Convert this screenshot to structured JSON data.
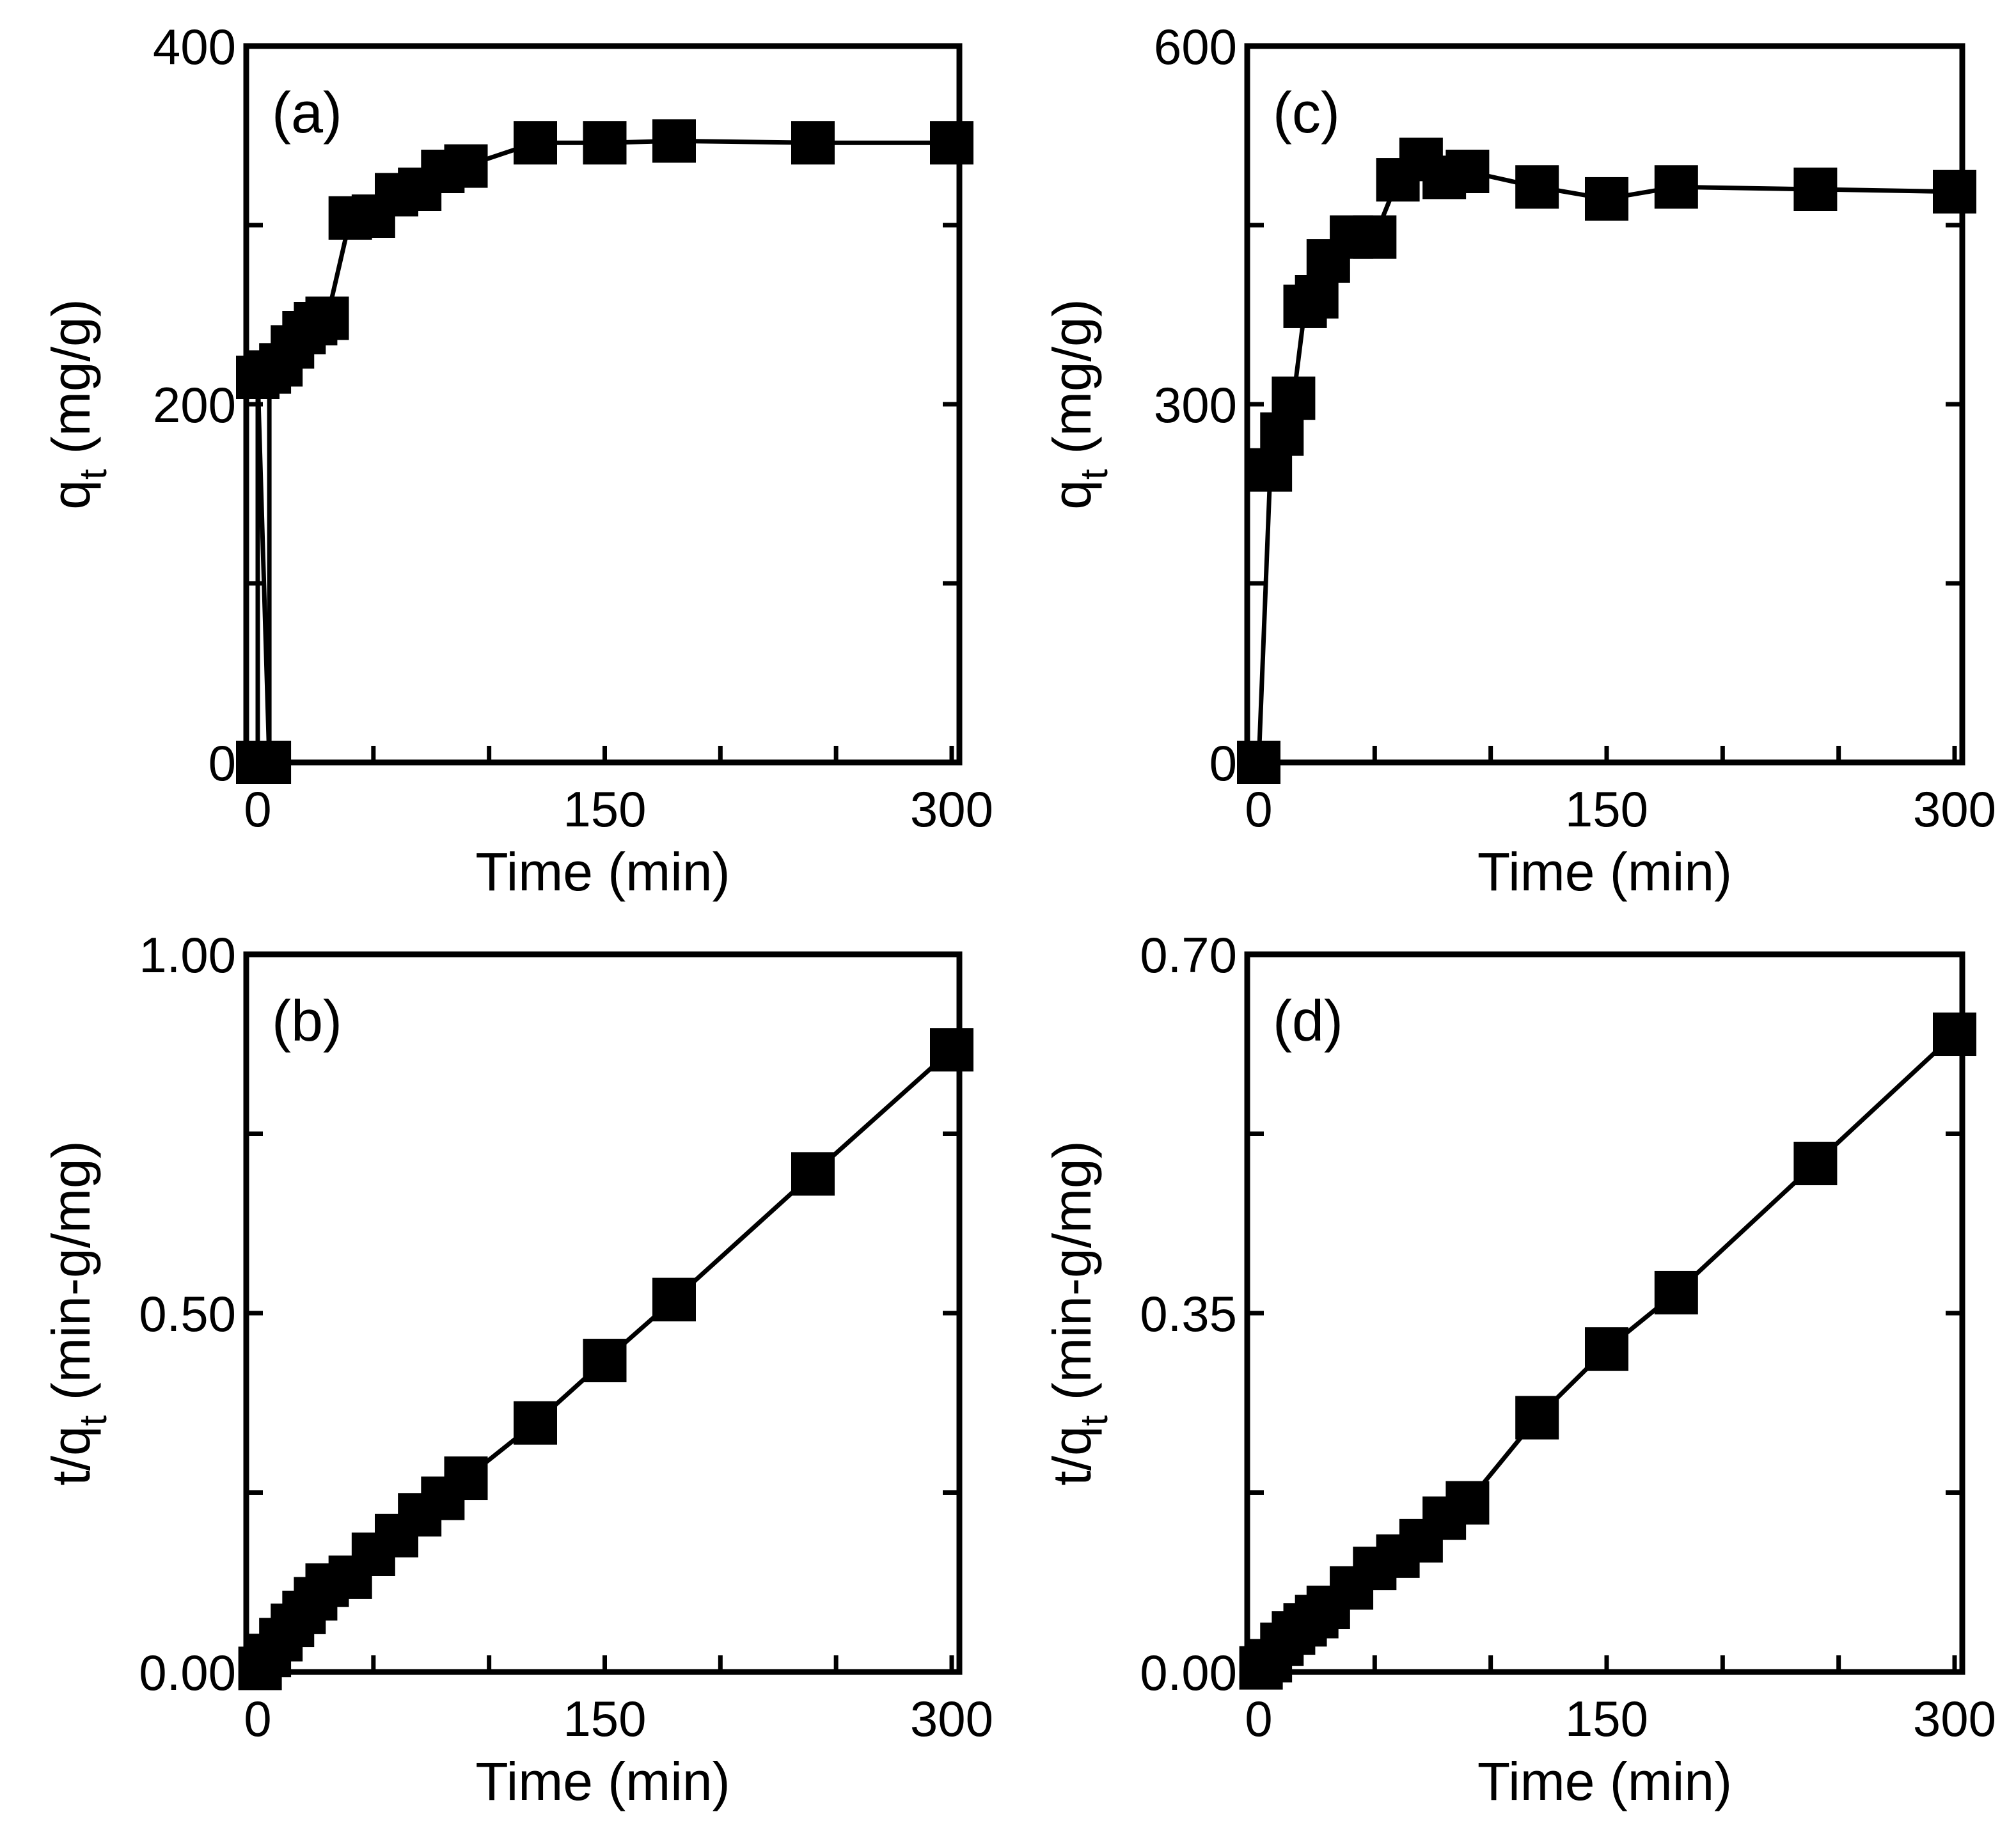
{
  "chart_data": [
    {
      "type": "line",
      "panel_label": "(a)",
      "xlabel": "Time (min)",
      "ylabel_main": "q",
      "ylabel_sub": "t",
      "ylabel_tail": " (mg/g)",
      "xlim": [
        0,
        300
      ],
      "ylim": [
        0,
        400
      ],
      "xticks": [
        0,
        150,
        300
      ],
      "xtick_labels": [
        "0",
        "150",
        "300"
      ],
      "yticks": [
        0,
        200,
        400
      ],
      "ytick_labels": [
        "0",
        "200",
        "400"
      ],
      "y_minor_ticks": [
        100,
        300
      ],
      "series": [
        {
          "name": "qt",
          "x": [
            0,
            0,
            5,
            5,
            10,
            15,
            20,
            25,
            30,
            40,
            50,
            60,
            70,
            80,
            90,
            120,
            150,
            180,
            240,
            300
          ],
          "y": [
            0,
            215,
            0,
            218,
            222,
            232,
            240,
            245,
            248,
            304,
            305,
            317,
            320,
            330,
            333,
            346,
            346,
            347,
            346,
            346
          ]
        }
      ]
    },
    {
      "type": "line",
      "panel_label": "(b)",
      "xlabel": "Time (min)",
      "ylabel_main": "t/q",
      "ylabel_sub": "t",
      "ylabel_tail": " (min-g/mg)",
      "xlim": [
        0,
        300
      ],
      "ylim": [
        0,
        1.0
      ],
      "xticks": [
        0,
        150,
        300
      ],
      "xtick_labels": [
        "0",
        "150",
        "300"
      ],
      "yticks": [
        0,
        0.5,
        1.0
      ],
      "ytick_labels": [
        "0.00",
        "0.50",
        "1.00"
      ],
      "y_minor_ticks": [
        0.25,
        0.75
      ],
      "series": [
        {
          "name": "t/qt",
          "x": [
            1,
            5,
            10,
            15,
            20,
            25,
            30,
            40,
            50,
            60,
            70,
            80,
            90,
            120,
            150,
            180,
            240,
            300
          ],
          "y": [
            0.005,
            0.023,
            0.045,
            0.065,
            0.083,
            0.102,
            0.121,
            0.132,
            0.164,
            0.19,
            0.219,
            0.242,
            0.27,
            0.347,
            0.434,
            0.519,
            0.694,
            0.867
          ]
        }
      ]
    },
    {
      "type": "line",
      "panel_label": "(c)",
      "xlabel": "Time (min)",
      "ylabel_main": "q",
      "ylabel_sub": "t",
      "ylabel_tail": " (mg/g)",
      "xlim": [
        0,
        300
      ],
      "ylim": [
        0,
        600
      ],
      "xticks": [
        0,
        150,
        300
      ],
      "xtick_labels": [
        "0",
        "150",
        "300"
      ],
      "yticks": [
        0,
        300,
        600
      ],
      "ytick_labels": [
        "0",
        "300",
        "600"
      ],
      "y_minor_ticks": [
        150,
        450
      ],
      "series": [
        {
          "name": "qt",
          "x": [
            0,
            5,
            10,
            15,
            20,
            25,
            30,
            40,
            50,
            60,
            70,
            80,
            90,
            120,
            150,
            180,
            240,
            300
          ],
          "y": [
            0,
            245,
            275,
            305,
            382,
            390,
            420,
            440,
            440,
            488,
            505,
            490,
            495,
            482,
            472,
            482,
            480,
            478
          ]
        }
      ]
    },
    {
      "type": "line",
      "panel_label": "(d)",
      "xlabel": "Time (min)",
      "ylabel_main": "t/q",
      "ylabel_sub": "t",
      "ylabel_tail": " (min-g/mg)",
      "xlim": [
        0,
        300
      ],
      "ylim": [
        0,
        0.7
      ],
      "xticks": [
        0,
        150,
        300
      ],
      "xtick_labels": [
        "0",
        "150",
        "300"
      ],
      "yticks": [
        0,
        0.35,
        0.7
      ],
      "ytick_labels": [
        "0.00",
        "0.35",
        "0.70"
      ],
      "y_minor_ticks": [
        0.175,
        0.525
      ],
      "series": [
        {
          "name": "t/qt",
          "x": [
            1,
            5,
            10,
            15,
            20,
            25,
            30,
            40,
            50,
            60,
            70,
            80,
            90,
            120,
            150,
            180,
            240,
            300
          ],
          "y": [
            0.004,
            0.011,
            0.027,
            0.038,
            0.046,
            0.054,
            0.063,
            0.082,
            0.101,
            0.113,
            0.128,
            0.15,
            0.165,
            0.248,
            0.315,
            0.37,
            0.496,
            0.622
          ]
        }
      ]
    }
  ]
}
